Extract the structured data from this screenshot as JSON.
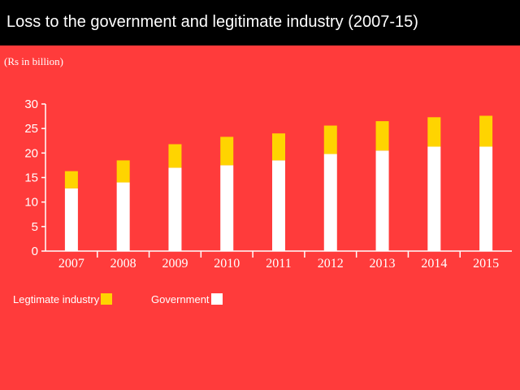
{
  "title": "Loss to the government and legitimate industry (2007-15)",
  "unit_label": "(Rs in billion)",
  "colors": {
    "background": "#ff3b3b",
    "government": "#ffffff",
    "industry": "#ffd400",
    "axis": "#ffffff"
  },
  "chart_data": {
    "type": "bar",
    "stacked": true,
    "title": "Loss to the government and legitimate industry (2007-15)",
    "ylabel": "(Rs in billion)",
    "xlabel": "",
    "categories": [
      "2007",
      "2008",
      "2009",
      "2010",
      "2011",
      "2012",
      "2013",
      "2014",
      "2015"
    ],
    "series": [
      {
        "name": "Government",
        "values": [
          12.8,
          14.0,
          17.0,
          17.5,
          18.5,
          19.8,
          20.5,
          21.3,
          21.3
        ]
      },
      {
        "name": "Legtimate industry",
        "values": [
          3.5,
          4.5,
          4.8,
          5.8,
          5.5,
          5.8,
          6.0,
          6.0,
          6.3
        ]
      }
    ],
    "ylim": [
      0,
      30
    ],
    "yticks": [
      0,
      5,
      10,
      15,
      20,
      25,
      30
    ],
    "legend": [
      {
        "label": "Legtimate industry",
        "series": "Legtimate industry"
      },
      {
        "label": "Government",
        "series": "Government"
      }
    ],
    "legend_position": "bottom-left",
    "grid": false
  }
}
